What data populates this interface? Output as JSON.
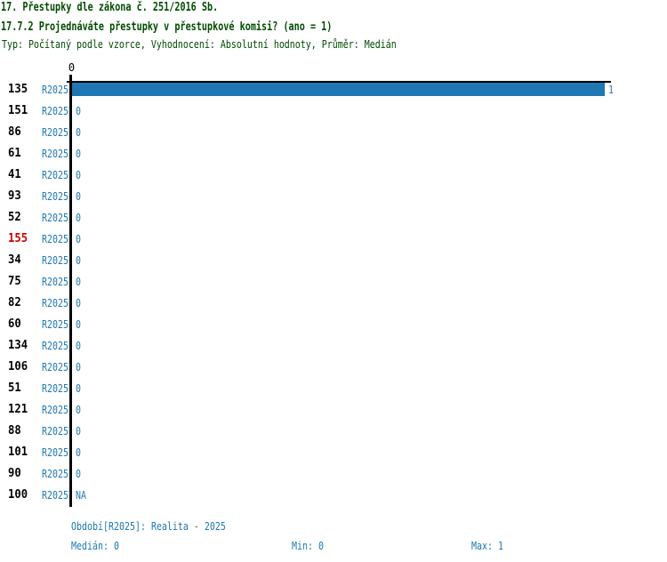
{
  "header": {
    "line1": "17. Přestupky dle zákona č. 251/2016 Sb.",
    "line2": "17.7.2 Projednáváte přestupky v přestupkové komisi? (ano = 1)",
    "line3": "Typ: Počítaný podle vzorce, Vyhodnocení: Absolutní hodnoty, Průměr: Medián"
  },
  "chart_data": {
    "type": "bar",
    "orientation": "horizontal",
    "title": "17.7.2 Projednáváte přestupky v přestupkové komisi? (ano = 1)",
    "xlabel": "",
    "ylabel": "",
    "xlim": [
      0,
      1
    ],
    "axis_tick_labels": [
      "0"
    ],
    "grid": false,
    "legend_position": "none",
    "period_label": "R2025",
    "categories": [
      "135",
      "151",
      "86",
      "61",
      "41",
      "93",
      "52",
      "155",
      "34",
      "75",
      "82",
      "60",
      "134",
      "106",
      "51",
      "121",
      "88",
      "101",
      "90",
      "100"
    ],
    "values": [
      1,
      0,
      0,
      0,
      0,
      0,
      0,
      0,
      0,
      0,
      0,
      0,
      0,
      0,
      0,
      0,
      0,
      0,
      0,
      null
    ],
    "value_labels": [
      "1",
      "0",
      "0",
      "0",
      "0",
      "0",
      "0",
      "0",
      "0",
      "0",
      "0",
      "0",
      "0",
      "0",
      "0",
      "0",
      "0",
      "0",
      "0",
      "NA"
    ],
    "highlighted_categories": [
      "155"
    ]
  },
  "footer": {
    "period_line": "Období[R2025]: Realita - 2025",
    "median": "Medián: 0",
    "min": "Min: 0",
    "max": "Max: 1"
  },
  "colors": {
    "bar_blue": "#1f77b4",
    "text_blue": "#1f77b4",
    "highlight_red": "#cc0000",
    "title_green": "#004b00",
    "axis_black": "#000000"
  }
}
